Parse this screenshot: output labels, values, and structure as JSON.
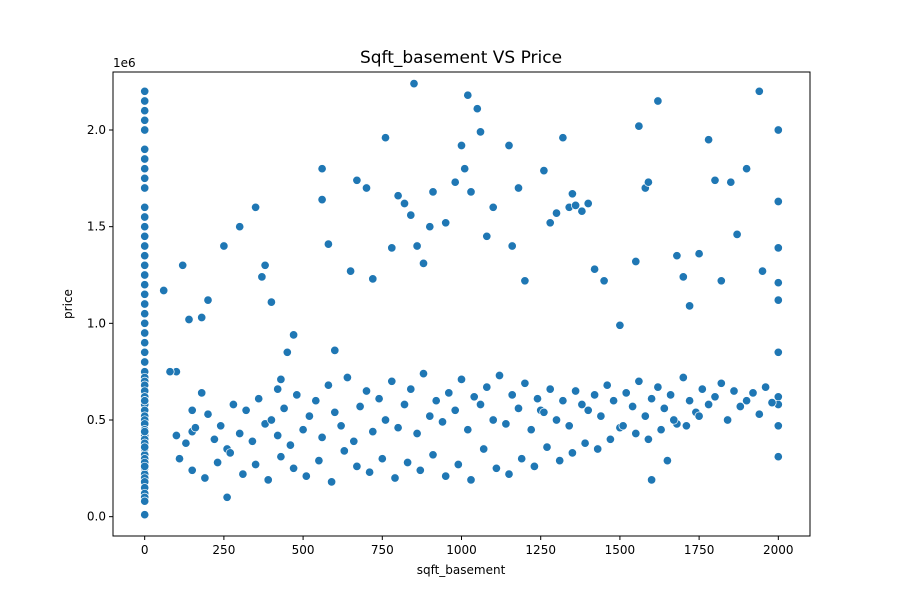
{
  "chart_data": {
    "type": "scatter",
    "title": "Sqft_basement VS Price",
    "xlabel": "sqft_basement",
    "ylabel": "price",
    "y_offset_label": "1e6",
    "xlim": [
      -100,
      2100
    ],
    "ylim": [
      -0.1,
      2.3
    ],
    "y_units": "1e6 dollars",
    "x_ticks": [
      0,
      250,
      500,
      750,
      1000,
      1250,
      1500,
      1750,
      2000
    ],
    "x_tick_labels": [
      "0",
      "250",
      "500",
      "750",
      "1000",
      "1250",
      "1500",
      "1750",
      "2000"
    ],
    "y_ticks": [
      0.0,
      0.5,
      1.0,
      1.5,
      2.0
    ],
    "y_tick_labels": [
      "0.0",
      "0.5",
      "1.0",
      "1.5",
      "2.0"
    ],
    "grid": false,
    "legend": "none",
    "point_color": "#1f77b4",
    "series": [
      {
        "x": [
          0,
          0,
          0,
          0,
          0,
          0,
          0,
          0,
          0,
          0,
          0,
          0,
          0,
          0,
          0,
          0,
          0,
          0,
          0,
          0,
          0,
          0,
          0,
          0,
          0,
          0,
          0,
          0,
          0,
          0,
          0,
          0,
          0,
          0,
          0,
          0,
          0,
          0,
          0,
          0,
          0,
          0,
          0,
          0,
          0,
          0,
          0,
          0,
          0,
          0,
          0,
          0,
          0,
          0,
          0,
          0,
          0,
          0,
          0,
          0,
          60,
          100,
          120,
          140,
          150,
          180,
          200,
          250,
          260,
          300,
          350,
          370,
          380,
          400,
          420,
          430,
          450,
          470,
          560,
          560,
          580,
          600,
          650,
          670,
          700,
          720,
          760,
          780,
          800,
          820,
          840,
          850,
          860,
          880,
          900,
          910,
          950,
          980,
          1000,
          1010,
          1020,
          1030,
          1050,
          1060,
          1080,
          1100,
          1150,
          1160,
          1180,
          1200,
          1250,
          1260,
          1280,
          1300,
          1320,
          1340,
          1350,
          1360,
          1380,
          1400,
          1420,
          1450,
          1500,
          1550,
          1560,
          1580,
          1590,
          1600,
          1620,
          1650,
          1680,
          1700,
          1720,
          1750,
          1780,
          1800,
          1820,
          1850,
          1870,
          1900,
          1940,
          1950,
          2000,
          2000,
          2000,
          2000,
          2000,
          2000,
          2000,
          2000,
          2000,
          2000,
          80,
          100,
          130,
          150,
          160,
          180,
          200,
          220,
          240,
          260,
          280,
          300,
          320,
          340,
          360,
          380,
          400,
          420,
          440,
          460,
          480,
          500,
          520,
          540,
          560,
          580,
          600,
          620,
          640,
          660,
          680,
          700,
          720,
          740,
          760,
          780,
          800,
          820,
          840,
          860,
          880,
          900,
          920,
          940,
          960,
          980,
          1000,
          1020,
          1040,
          1060,
          1080,
          1100,
          1120,
          1140,
          1160,
          1180,
          1200,
          1220,
          1240,
          1260,
          1280,
          1300,
          1320,
          1340,
          1360,
          1380,
          1400,
          1420,
          1440,
          1460,
          1480,
          1500,
          1520,
          1540,
          1560,
          1580,
          1600,
          1620,
          1640,
          1660,
          1680,
          1700,
          1720,
          1740,
          1760,
          1780,
          1800,
          1820,
          1840,
          1860,
          1880,
          1900,
          1920,
          1940,
          1960,
          1980,
          110,
          150,
          190,
          230,
          270,
          310,
          350,
          390,
          430,
          470,
          510,
          550,
          590,
          630,
          670,
          710,
          750,
          790,
          830,
          870,
          910,
          950,
          990,
          1030,
          1070,
          1110,
          1150,
          1190,
          1230,
          1270,
          1310,
          1350,
          1390,
          1430,
          1470,
          1510,
          1550,
          1590,
          1630,
          1670,
          1710,
          1750
        ],
        "y": [
          2.2,
          2.15,
          2.1,
          2.05,
          2.0,
          1.9,
          1.85,
          1.8,
          1.75,
          1.7,
          1.6,
          1.55,
          1.5,
          1.45,
          1.4,
          1.35,
          1.3,
          1.25,
          1.2,
          1.15,
          1.1,
          1.05,
          1.0,
          0.95,
          0.9,
          0.85,
          0.8,
          0.75,
          0.72,
          0.7,
          0.68,
          0.65,
          0.62,
          0.6,
          0.58,
          0.55,
          0.52,
          0.5,
          0.48,
          0.45,
          0.42,
          0.4,
          0.38,
          0.35,
          0.32,
          0.3,
          0.28,
          0.25,
          0.22,
          0.2,
          0.18,
          0.15,
          0.12,
          0.1,
          0.08,
          0.01,
          0.6,
          0.44,
          0.36,
          0.26,
          1.17,
          0.75,
          1.3,
          1.02,
          0.55,
          1.03,
          1.12,
          1.4,
          0.1,
          1.5,
          1.6,
          1.24,
          1.3,
          1.11,
          0.66,
          0.71,
          0.85,
          0.94,
          1.8,
          1.64,
          1.41,
          0.86,
          1.27,
          1.74,
          1.7,
          1.23,
          1.96,
          1.39,
          1.66,
          1.62,
          1.56,
          2.24,
          1.4,
          1.31,
          1.5,
          1.68,
          1.52,
          1.73,
          1.92,
          1.8,
          2.18,
          1.68,
          2.11,
          1.99,
          1.45,
          1.6,
          1.92,
          1.4,
          1.7,
          1.22,
          0.55,
          1.79,
          1.52,
          1.57,
          1.96,
          1.6,
          1.67,
          1.61,
          1.58,
          1.62,
          1.28,
          1.22,
          0.99,
          1.32,
          2.02,
          1.7,
          1.73,
          0.19,
          2.15,
          0.29,
          1.35,
          1.24,
          1.09,
          1.36,
          1.95,
          1.74,
          1.22,
          1.73,
          1.46,
          1.8,
          2.2,
          1.27,
          2.0,
          1.63,
          1.39,
          1.21,
          1.12,
          0.85,
          0.62,
          0.58,
          0.47,
          0.31,
          0.75,
          0.42,
          0.38,
          0.44,
          0.46,
          0.64,
          0.53,
          0.4,
          0.47,
          0.35,
          0.58,
          0.43,
          0.55,
          0.39,
          0.61,
          0.48,
          0.5,
          0.42,
          0.56,
          0.37,
          0.63,
          0.45,
          0.52,
          0.6,
          0.41,
          0.68,
          0.54,
          0.47,
          0.72,
          0.39,
          0.57,
          0.65,
          0.44,
          0.61,
          0.5,
          0.7,
          0.46,
          0.58,
          0.66,
          0.43,
          0.74,
          0.52,
          0.6,
          0.49,
          0.64,
          0.55,
          0.71,
          0.45,
          0.62,
          0.58,
          0.67,
          0.5,
          0.73,
          0.48,
          0.63,
          0.56,
          0.69,
          0.45,
          0.61,
          0.54,
          0.66,
          0.5,
          0.6,
          0.47,
          0.65,
          0.58,
          0.55,
          0.63,
          0.52,
          0.68,
          0.6,
          0.46,
          0.64,
          0.57,
          0.7,
          0.52,
          0.61,
          0.67,
          0.56,
          0.63,
          0.48,
          0.72,
          0.6,
          0.54,
          0.66,
          0.58,
          0.62,
          0.69,
          0.5,
          0.65,
          0.57,
          0.6,
          0.64,
          0.53,
          0.67,
          0.59,
          0.3,
          0.24,
          0.2,
          0.28,
          0.33,
          0.22,
          0.27,
          0.19,
          0.31,
          0.25,
          0.21,
          0.29,
          0.18,
          0.34,
          0.26,
          0.23,
          0.3,
          0.2,
          0.28,
          0.24,
          0.32,
          0.21,
          0.27,
          0.19,
          0.35,
          0.25,
          0.22,
          0.3,
          0.26,
          0.36,
          0.29,
          0.33,
          0.38,
          0.35,
          0.4,
          0.47,
          0.43,
          0.4,
          0.45,
          0.5,
          0.47,
          0.52
        ]
      }
    ]
  }
}
